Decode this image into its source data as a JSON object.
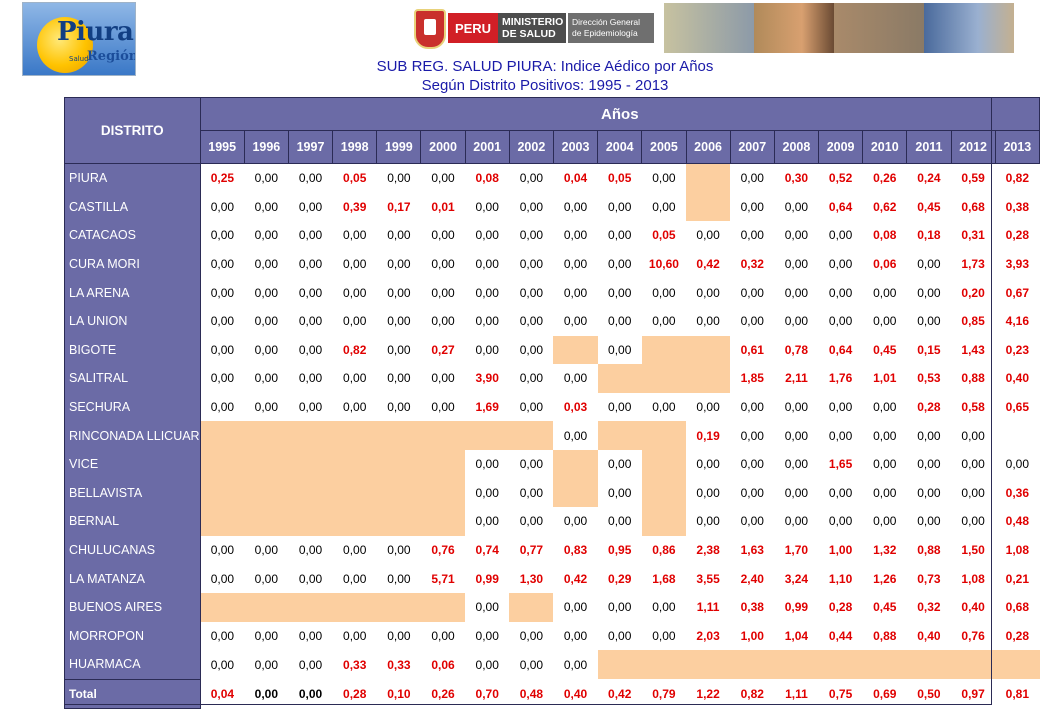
{
  "header": {
    "logo_left": {
      "word": "Piura",
      "sub": "Región",
      "small": "Salud"
    },
    "banner": {
      "peru": "PERU",
      "ministerio": [
        "MINISTERIO",
        "DE SALUD"
      ],
      "direccion": [
        "Dirección General",
        "de Epidemiología"
      ]
    },
    "title_line1": "SUB REG. SALUD PIURA: Indice Aédico por Años",
    "title_line2": "Según Distrito Positivos: 1995 - 2013"
  },
  "table": {
    "district_header": "DISTRITO",
    "years_header": "Años",
    "years": [
      "1995",
      "1996",
      "1997",
      "1998",
      "1999",
      "2000",
      "2001",
      "2002",
      "2003",
      "2004",
      "2005",
      "2006",
      "2007",
      "2008",
      "2009",
      "2010",
      "2011",
      "2012",
      "2013"
    ],
    "rows": [
      {
        "name": "PIURA",
        "values": [
          "0,25",
          "0,00",
          "0,00",
          "0,05",
          "0,00",
          "0,00",
          "0,08",
          "0,00",
          "0,04",
          "0,05",
          "0,00",
          null,
          "0,00",
          "0,30",
          "0,52",
          "0,26",
          "0,24",
          "0,59",
          "0,82"
        ]
      },
      {
        "name": "CASTILLA",
        "values": [
          "0,00",
          "0,00",
          "0,00",
          "0,39",
          "0,17",
          "0,01",
          "0,00",
          "0,00",
          "0,00",
          "0,00",
          "0,00",
          null,
          "0,00",
          "0,00",
          "0,64",
          "0,62",
          "0,45",
          "0,68",
          "0,38"
        ]
      },
      {
        "name": "CATACAOS",
        "values": [
          "0,00",
          "0,00",
          "0,00",
          "0,00",
          "0,00",
          "0,00",
          "0,00",
          "0,00",
          "0,00",
          "0,00",
          "0,05",
          "0,00",
          "0,00",
          "0,00",
          "0,00",
          "0,08",
          "0,18",
          "0,31",
          "0,28"
        ]
      },
      {
        "name": "CURA MORI",
        "values": [
          "0,00",
          "0,00",
          "0,00",
          "0,00",
          "0,00",
          "0,00",
          "0,00",
          "0,00",
          "0,00",
          "0,00",
          "10,60",
          "0,42",
          "0,32",
          "0,00",
          "0,00",
          "0,06",
          "0,00",
          "1,73",
          "3,93"
        ]
      },
      {
        "name": "LA ARENA",
        "values": [
          "0,00",
          "0,00",
          "0,00",
          "0,00",
          "0,00",
          "0,00",
          "0,00",
          "0,00",
          "0,00",
          "0,00",
          "0,00",
          "0,00",
          "0,00",
          "0,00",
          "0,00",
          "0,00",
          "0,00",
          "0,20",
          "0,67"
        ]
      },
      {
        "name": "LA UNION",
        "values": [
          "0,00",
          "0,00",
          "0,00",
          "0,00",
          "0,00",
          "0,00",
          "0,00",
          "0,00",
          "0,00",
          "0,00",
          "0,00",
          "0,00",
          "0,00",
          "0,00",
          "0,00",
          "0,00",
          "0,00",
          "0,85",
          "4,16"
        ]
      },
      {
        "name": "BIGOTE",
        "values": [
          "0,00",
          "0,00",
          "0,00",
          "0,82",
          "0,00",
          "0,27",
          "0,00",
          "0,00",
          null,
          "0,00",
          null,
          null,
          "0,61",
          "0,78",
          "0,64",
          "0,45",
          "0,15",
          "1,43",
          "0,23"
        ]
      },
      {
        "name": "SALITRAL",
        "values": [
          "0,00",
          "0,00",
          "0,00",
          "0,00",
          "0,00",
          "0,00",
          "3,90",
          "0,00",
          "0,00",
          null,
          null,
          null,
          "1,85",
          "2,11",
          "1,76",
          "1,01",
          "0,53",
          "0,88",
          "0,40"
        ]
      },
      {
        "name": "SECHURA",
        "values": [
          "0,00",
          "0,00",
          "0,00",
          "0,00",
          "0,00",
          "0,00",
          "1,69",
          "0,00",
          "0,03",
          "0,00",
          "0,00",
          "0,00",
          "0,00",
          "0,00",
          "0,00",
          "0,00",
          "0,28",
          "0,58",
          "0,65"
        ]
      },
      {
        "name": "RINCONADA LLICUAR",
        "values": [
          null,
          null,
          null,
          null,
          null,
          null,
          null,
          null,
          "0,00",
          null,
          null,
          "0,19",
          "0,00",
          "0,00",
          "0,00",
          "0,00",
          "0,00",
          "0,00",
          ""
        ]
      },
      {
        "name": "VICE",
        "values": [
          null,
          null,
          null,
          null,
          null,
          null,
          "0,00",
          "0,00",
          null,
          "0,00",
          null,
          "0,00",
          "0,00",
          "0,00",
          "1,65",
          "0,00",
          "0,00",
          "0,00",
          "0,00"
        ]
      },
      {
        "name": "BELLAVISTA",
        "values": [
          null,
          null,
          null,
          null,
          null,
          null,
          "0,00",
          "0,00",
          null,
          "0,00",
          null,
          "0,00",
          "0,00",
          "0,00",
          "0,00",
          "0,00",
          "0,00",
          "0,00",
          "0,36"
        ]
      },
      {
        "name": "BERNAL",
        "values": [
          null,
          null,
          null,
          null,
          null,
          null,
          "0,00",
          "0,00",
          "0,00",
          "0,00",
          null,
          "0,00",
          "0,00",
          "0,00",
          "0,00",
          "0,00",
          "0,00",
          "0,00",
          "0,48"
        ]
      },
      {
        "name": "CHULUCANAS",
        "values": [
          "0,00",
          "0,00",
          "0,00",
          "0,00",
          "0,00",
          "0,76",
          "0,74",
          "0,77",
          "0,83",
          "0,95",
          "0,86",
          "2,38",
          "1,63",
          "1,70",
          "1,00",
          "1,32",
          "0,88",
          "1,50",
          "1,08"
        ]
      },
      {
        "name": "LA MATANZA",
        "values": [
          "0,00",
          "0,00",
          "0,00",
          "0,00",
          "0,00",
          "5,71",
          "0,99",
          "1,30",
          "0,42",
          "0,29",
          "1,68",
          "3,55",
          "2,40",
          "3,24",
          "1,10",
          "1,26",
          "0,73",
          "1,08",
          "0,21"
        ]
      },
      {
        "name": "BUENOS AIRES",
        "values": [
          null,
          null,
          null,
          null,
          null,
          null,
          "0,00",
          null,
          "0,00",
          "0,00",
          "0,00",
          "1,11",
          "0,38",
          "0,99",
          "0,28",
          "0,45",
          "0,32",
          "0,40",
          "0,68"
        ]
      },
      {
        "name": "MORROPON",
        "values": [
          "0,00",
          "0,00",
          "0,00",
          "0,00",
          "0,00",
          "0,00",
          "0,00",
          "0,00",
          "0,00",
          "0,00",
          "0,00",
          "2,03",
          "1,00",
          "1,04",
          "0,44",
          "0,88",
          "0,40",
          "0,76",
          "0,28"
        ]
      },
      {
        "name": "HUARMACA",
        "values": [
          "0,00",
          "0,00",
          "0,00",
          "0,33",
          "0,33",
          "0,06",
          "0,00",
          "0,00",
          "0,00",
          null,
          null,
          null,
          null,
          null,
          null,
          null,
          null,
          null,
          null
        ]
      }
    ],
    "total": {
      "label": "Total",
      "values": [
        "0,04",
        "0,00",
        "0,00",
        "0,28",
        "0,10",
        "0,26",
        "0,70",
        "0,48",
        "0,40",
        "0,42",
        "0,79",
        "1,22",
        "0,82",
        "1,11",
        "0,75",
        "0,69",
        "0,50",
        "0,97",
        "0,81"
      ]
    },
    "colors": {
      "header_bg": "#6b6ba6",
      "na_fill": "#fccfa0",
      "positive_text": "#e00000",
      "title_text": "#1a1aa8"
    }
  }
}
